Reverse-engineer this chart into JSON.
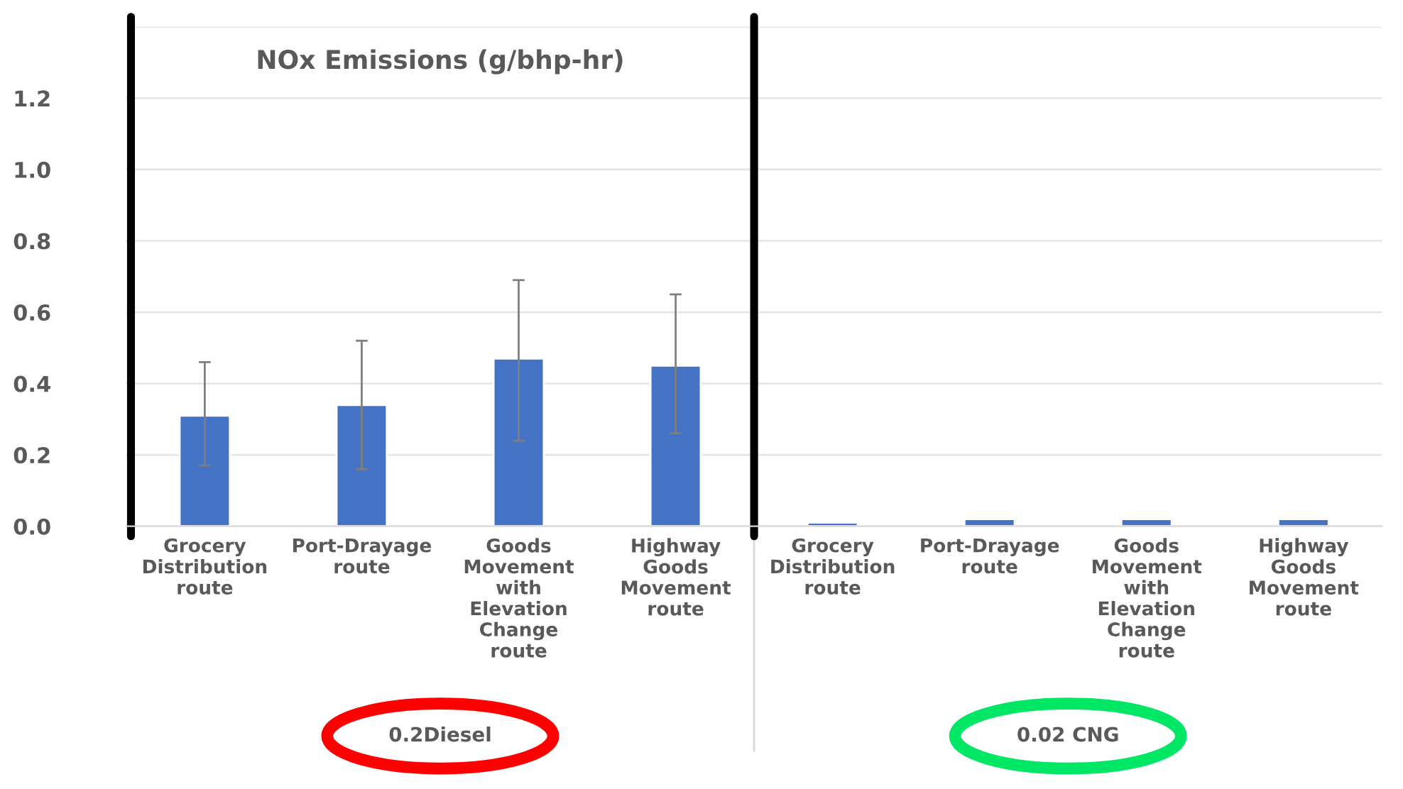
{
  "chart_data": {
    "type": "bar",
    "title": "NOx Emissions (g/bhp-hr)",
    "categories": [
      "Grocery\nDistribution\nroute",
      "Port-Drayage\nroute",
      "Goods\nMovement\nwith\nElevation\nChange\nroute",
      "Highway\nGoods\nMovement\nroute",
      "Grocery\nDistribution\nroute",
      "Port-Drayage\nroute",
      "Goods\nMovement\nwith\nElevation\nChange\nroute",
      "Highway\nGoods\nMovement\nroute"
    ],
    "values": [
      0.31,
      0.34,
      0.47,
      0.45,
      0.01,
      0.02,
      0.02,
      0.02
    ],
    "errors": [
      [
        0.17,
        0.46
      ],
      [
        0.16,
        0.52
      ],
      [
        0.24,
        0.69
      ],
      [
        0.26,
        0.65
      ],
      null,
      null,
      null,
      null
    ],
    "color": "#4472c4",
    "ylim": [
      0,
      1.4
    ],
    "yticks": [
      {
        "value": 0,
        "label": "0.0"
      },
      0.2,
      0.4,
      0.6,
      0.8,
      {
        "value": 1,
        "label": "1.0"
      },
      1.2,
      {
        "value": 1.4,
        "label": null
      }
    ],
    "grid": "y",
    "annotations": [
      "0.2Diesel",
      "0.02 CNG"
    ]
  }
}
